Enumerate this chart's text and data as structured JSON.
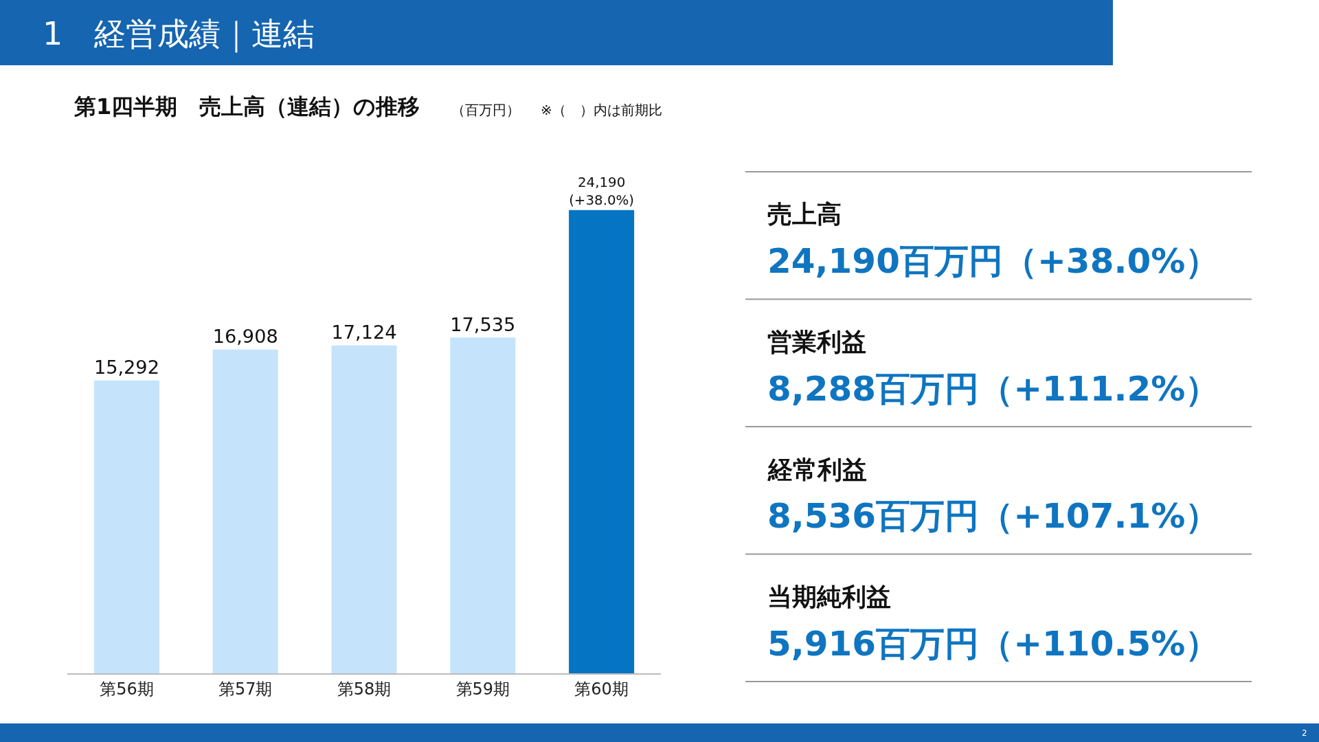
{
  "chart_data": [
    {
      "type": "other",
      "title": "1　経営成績｜連結",
      "annotations": [
        "2"
      ]
    },
    {
      "type": "bar",
      "title": "第1四半期　売上高（連結）の推移",
      "subtitle": "（百万円）",
      "annotations": [
        "※（　）内は前期比"
      ],
      "categories": [
        "第56期",
        "第57期",
        "第58期",
        "第59期",
        "第60期"
      ],
      "values": [
        15292,
        16908,
        17124,
        17535,
        24190
      ],
      "colors": [
        "#c5e4fb",
        "#c5e4fb",
        "#c5e4fb",
        "#c5e4fb",
        "#0575c3"
      ],
      "value_labels": [
        "15,292",
        "16,908",
        "17,124",
        "17,535",
        "24,190\n(+38.0%)"
      ],
      "tick_labels": "x"
    },
    {
      "type": "other",
      "annotations": [
        "売上高",
        "24,190百万円（+38.0%）",
        "営業利益",
        "8,288百万円（+111.2%）",
        "経常利益",
        "8,536百万円（+107.1%）",
        "当期純利益",
        "5,916百万円（+110.5%）"
      ]
    }
  ]
}
